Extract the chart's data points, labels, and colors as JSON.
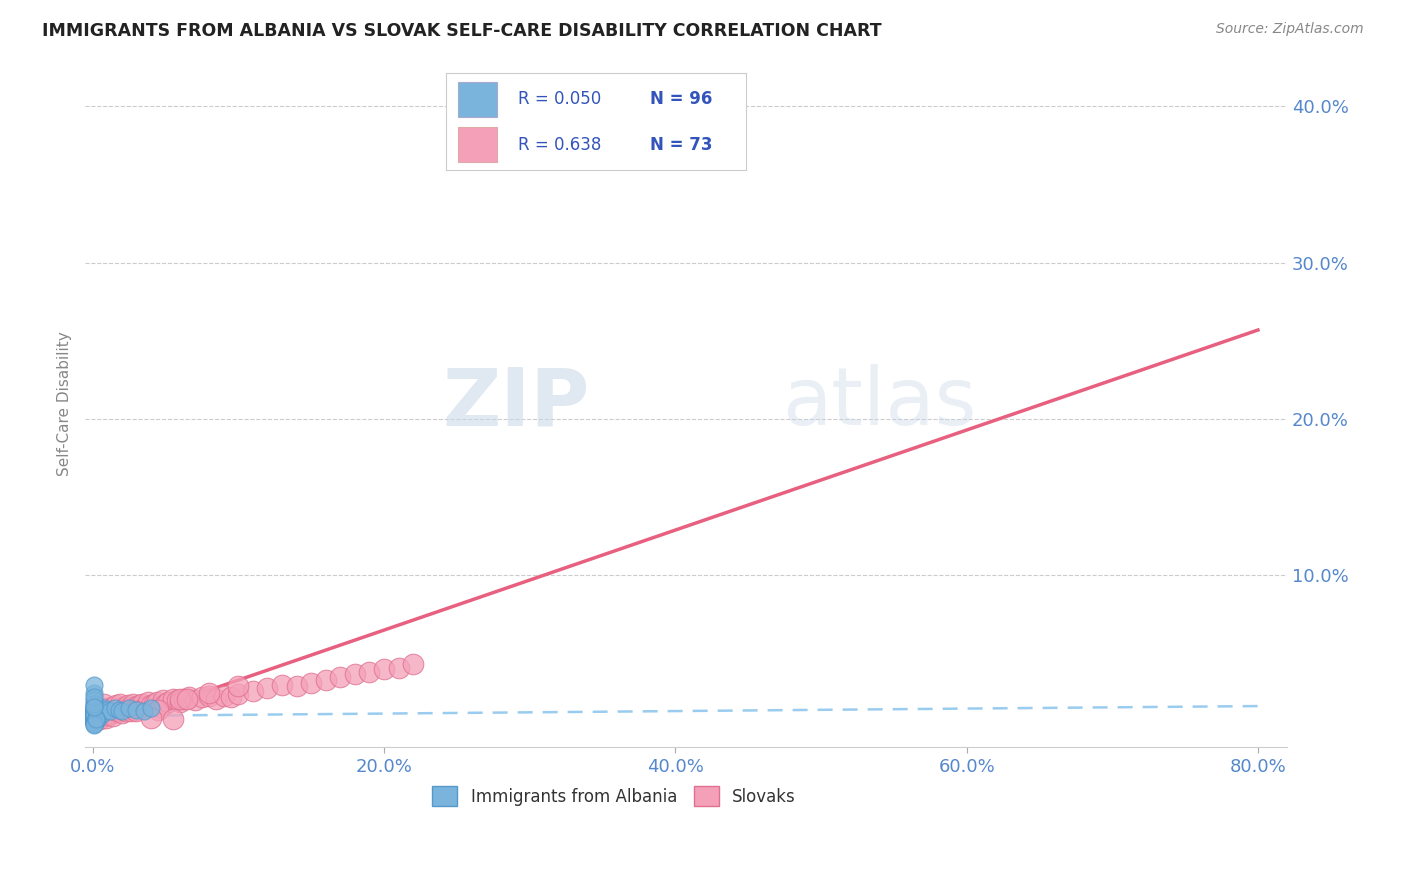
{
  "title": "IMMIGRANTS FROM ALBANIA VS SLOVAK SELF-CARE DISABILITY CORRELATION CHART",
  "source": "Source: ZipAtlas.com",
  "ylabel": "Self-Care Disability",
  "watermark_zip": "ZIP",
  "watermark_atlas": "atlas",
  "xlim": [
    -0.005,
    0.82
  ],
  "ylim": [
    -0.01,
    0.43
  ],
  "xticks": [
    0.0,
    0.2,
    0.4,
    0.6,
    0.8
  ],
  "yticks": [
    0.0,
    0.1,
    0.2,
    0.3,
    0.4
  ],
  "xtick_labels": [
    "0.0%",
    "20.0%",
    "40.0%",
    "60.0%",
    "80.0%"
  ],
  "ytick_labels_right": [
    "",
    "10.0%",
    "20.0%",
    "30.0%",
    "40.0%"
  ],
  "legend_R1": "R = 0.050",
  "legend_N1": "N = 96",
  "legend_R2": "R = 0.638",
  "legend_N2": "N = 73",
  "group1_color": "#7ab4dc",
  "group1_edge": "#5599cc",
  "group2_color": "#f4a0b8",
  "group2_edge": "#e07090",
  "trend1_color": "#99ccee",
  "trend2_color": "#e86080",
  "background": "#ffffff",
  "grid_color": "#cccccc",
  "title_color": "#222222",
  "tick_color": "#5588cc",
  "trend1_slope": 0.008,
  "trend1_intercept": 0.01,
  "trend2_slope": 0.32,
  "trend2_intercept": 0.001,
  "albania_x": [
    0.001,
    0.001,
    0.001,
    0.001,
    0.001,
    0.002,
    0.001,
    0.001,
    0.001,
    0.001,
    0.002,
    0.002,
    0.002,
    0.001,
    0.001,
    0.001,
    0.001,
    0.003,
    0.001,
    0.001,
    0.001,
    0.002,
    0.001,
    0.001,
    0.001,
    0.001,
    0.001,
    0.002,
    0.001,
    0.001,
    0.001,
    0.001,
    0.001,
    0.001,
    0.002,
    0.001,
    0.001,
    0.001,
    0.001,
    0.001,
    0.001,
    0.001,
    0.001,
    0.001,
    0.001,
    0.002,
    0.001,
    0.001,
    0.001,
    0.001,
    0.003,
    0.002,
    0.003,
    0.002,
    0.001,
    0.001,
    0.001,
    0.001,
    0.001,
    0.002,
    0.004,
    0.003,
    0.003,
    0.003,
    0.004,
    0.003,
    0.004,
    0.005,
    0.004,
    0.003,
    0.005,
    0.006,
    0.006,
    0.007,
    0.008,
    0.01,
    0.012,
    0.015,
    0.018,
    0.02,
    0.025,
    0.03,
    0.035,
    0.04,
    0.002,
    0.002,
    0.001,
    0.001,
    0.001,
    0.002,
    0.001,
    0.001,
    0.001,
    0.001,
    0.001,
    0.001
  ],
  "albania_y": [
    0.01,
    0.012,
    0.008,
    0.015,
    0.006,
    0.01,
    0.018,
    0.005,
    0.012,
    0.008,
    0.014,
    0.009,
    0.011,
    0.007,
    0.013,
    0.009,
    0.016,
    0.01,
    0.008,
    0.012,
    0.015,
    0.007,
    0.011,
    0.009,
    0.013,
    0.006,
    0.01,
    0.012,
    0.008,
    0.014,
    0.01,
    0.007,
    0.013,
    0.009,
    0.011,
    0.008,
    0.015,
    0.006,
    0.012,
    0.01,
    0.013,
    0.007,
    0.009,
    0.011,
    0.008,
    0.014,
    0.01,
    0.006,
    0.012,
    0.009,
    0.011,
    0.013,
    0.008,
    0.015,
    0.01,
    0.007,
    0.012,
    0.009,
    0.011,
    0.008,
    0.012,
    0.01,
    0.014,
    0.008,
    0.013,
    0.011,
    0.009,
    0.015,
    0.01,
    0.012,
    0.014,
    0.011,
    0.013,
    0.012,
    0.015,
    0.014,
    0.013,
    0.015,
    0.014,
    0.013,
    0.015,
    0.014,
    0.013,
    0.015,
    0.009,
    0.007,
    0.006,
    0.005,
    0.004,
    0.008,
    0.025,
    0.03,
    0.02,
    0.018,
    0.022,
    0.016
  ],
  "slovak_x": [
    0.001,
    0.002,
    0.003,
    0.004,
    0.005,
    0.006,
    0.007,
    0.008,
    0.009,
    0.01,
    0.011,
    0.012,
    0.013,
    0.014,
    0.015,
    0.016,
    0.017,
    0.018,
    0.019,
    0.02,
    0.021,
    0.022,
    0.023,
    0.024,
    0.025,
    0.026,
    0.027,
    0.028,
    0.029,
    0.03,
    0.032,
    0.034,
    0.036,
    0.038,
    0.04,
    0.042,
    0.044,
    0.046,
    0.048,
    0.05,
    0.052,
    0.055,
    0.058,
    0.06,
    0.063,
    0.066,
    0.07,
    0.075,
    0.08,
    0.085,
    0.09,
    0.095,
    0.1,
    0.11,
    0.12,
    0.13,
    0.14,
    0.15,
    0.16,
    0.17,
    0.18,
    0.19,
    0.2,
    0.21,
    0.22,
    0.06,
    0.08,
    0.1,
    0.03,
    0.045,
    0.065,
    0.04,
    0.055
  ],
  "slovak_y": [
    0.01,
    0.012,
    0.015,
    0.01,
    0.008,
    0.012,
    0.015,
    0.018,
    0.009,
    0.011,
    0.013,
    0.012,
    0.016,
    0.01,
    0.014,
    0.017,
    0.013,
    0.015,
    0.018,
    0.012,
    0.014,
    0.016,
    0.013,
    0.017,
    0.015,
    0.013,
    0.016,
    0.018,
    0.014,
    0.016,
    0.017,
    0.018,
    0.016,
    0.019,
    0.017,
    0.018,
    0.019,
    0.016,
    0.02,
    0.018,
    0.019,
    0.021,
    0.02,
    0.019,
    0.021,
    0.022,
    0.02,
    0.022,
    0.023,
    0.021,
    0.023,
    0.022,
    0.024,
    0.026,
    0.028,
    0.03,
    0.029,
    0.031,
    0.033,
    0.035,
    0.037,
    0.038,
    0.04,
    0.041,
    0.043,
    0.021,
    0.025,
    0.029,
    0.013,
    0.014,
    0.021,
    0.009,
    0.008
  ]
}
